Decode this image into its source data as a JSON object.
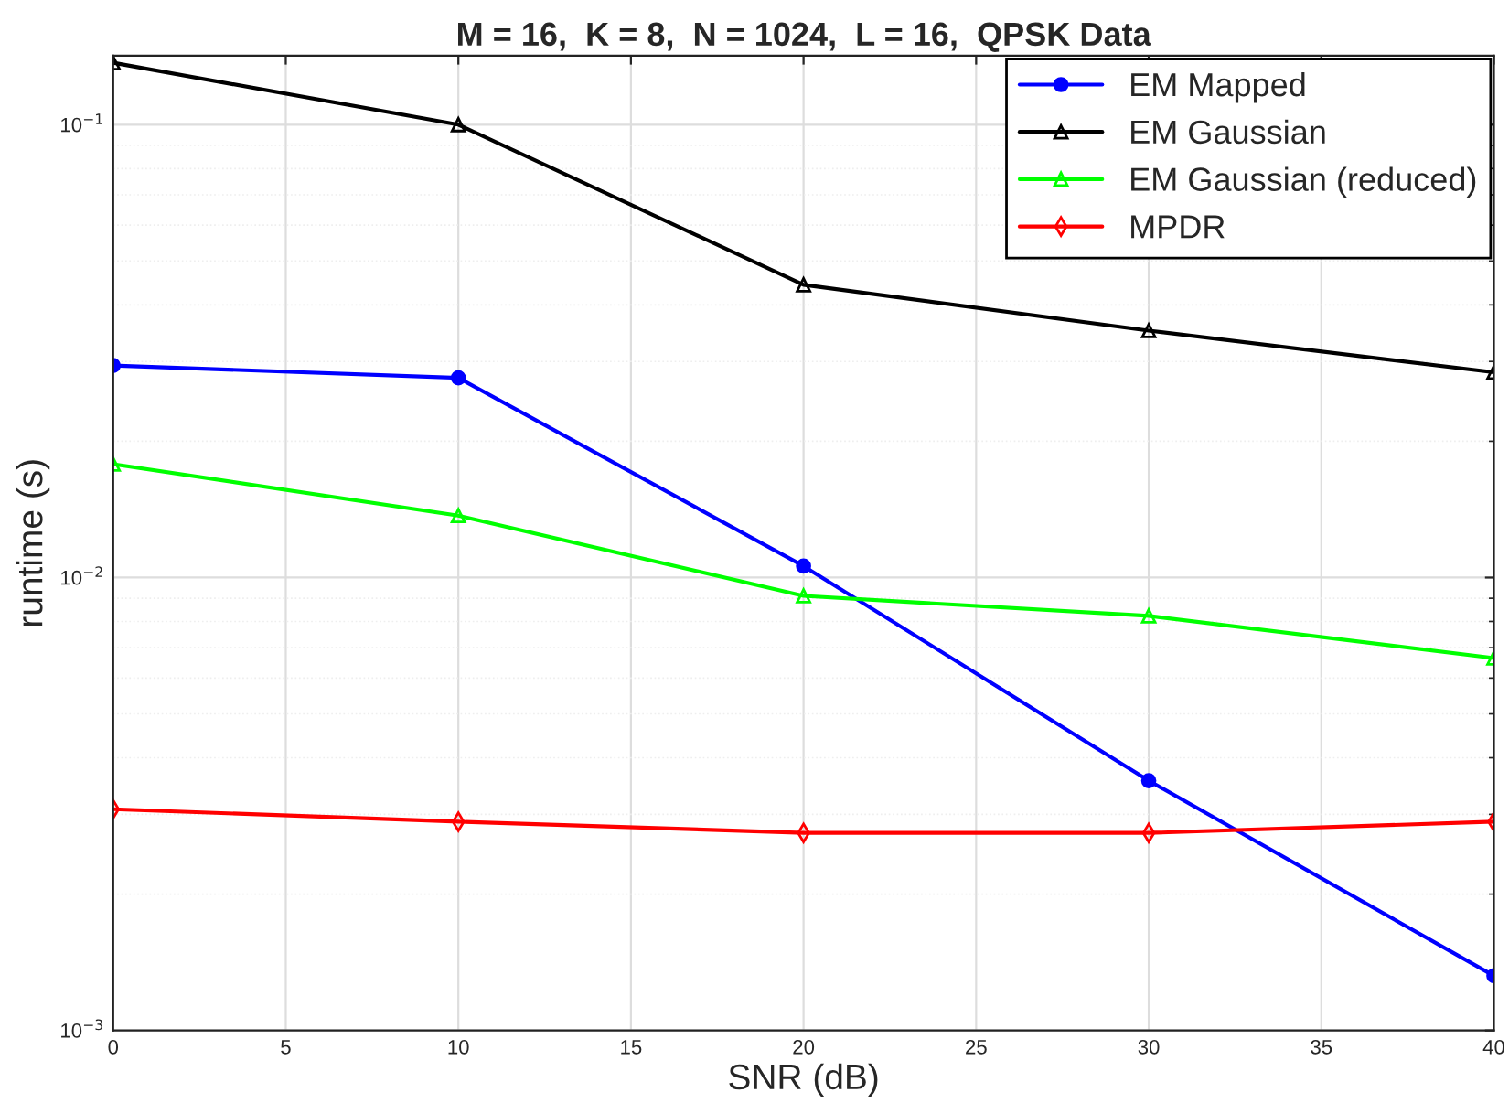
{
  "chart_data": {
    "type": "line",
    "title": "M = 16,  K = 8,  N = 1024,  L = 16,  QPSK Data",
    "xlabel": "SNR (dB)",
    "ylabel": "runtime (s)",
    "x": [
      0,
      10,
      20,
      30,
      40
    ],
    "series": [
      {
        "name": "EM Mapped",
        "color": "#0000ff",
        "marker": "circle",
        "values": [
          0.0294,
          0.0276,
          0.0106,
          0.00356,
          0.00132
        ]
      },
      {
        "name": "EM Gaussian",
        "color": "#000000",
        "marker": "triangle",
        "values": [
          0.137,
          0.1,
          0.0443,
          0.0351,
          0.0284
        ]
      },
      {
        "name": "EM Gaussian (reduced)",
        "color": "#00ff00",
        "marker": "triangle",
        "values": [
          0.0178,
          0.0137,
          0.00911,
          0.00823,
          0.00664
        ]
      },
      {
        "name": "MPDR",
        "color": "#ff0000",
        "marker": "diamond",
        "values": [
          0.00308,
          0.00289,
          0.00273,
          0.00273,
          0.00289
        ]
      }
    ],
    "log": "y",
    "xlim": [
      0,
      40
    ],
    "xticks": [
      0,
      5,
      10,
      15,
      20,
      25,
      30,
      35,
      40
    ],
    "ylim": [
      0.001,
      0.142
    ],
    "yticks": [
      {
        "value": 0.001,
        "label": "10$^{−3}$"
      },
      {
        "value": 0.01,
        "label": "10$^{−2}$"
      },
      {
        "value": 0.1,
        "label": "10$^{−1}$"
      }
    ],
    "grid": true,
    "legend": "top right",
    "line_style": "solid"
  }
}
